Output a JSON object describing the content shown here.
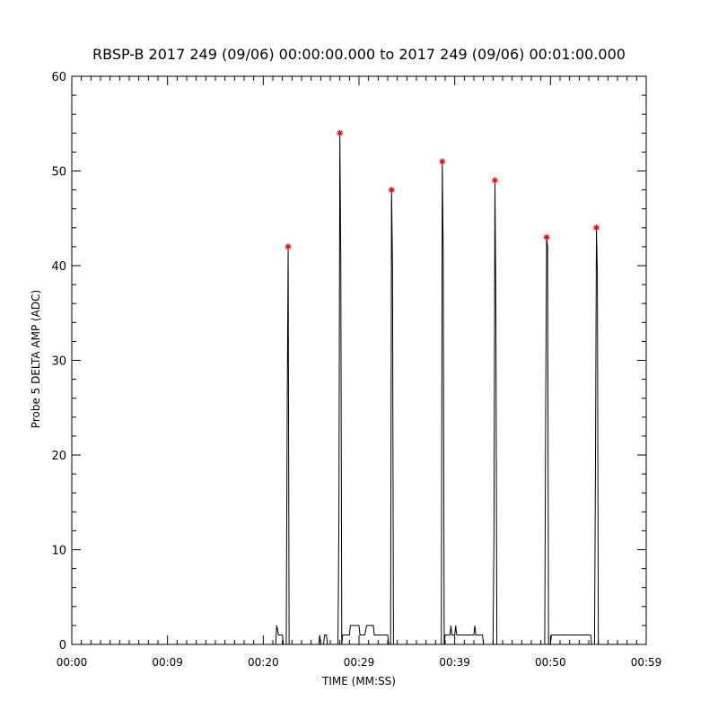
{
  "chart_data": {
    "type": "line",
    "title": "RBSP-B 2017 249 (09/06) 00:00:00.000 to 2017 249 (09/06) 00:01:00.000",
    "xlabel": "TIME (MM:SS)",
    "ylabel": "Probe 5 DELTA AMP (ADC)",
    "xlim": [
      0,
      60
    ],
    "ylim": [
      0,
      60
    ],
    "xticks": [
      {
        "value": 0,
        "label": "00:00"
      },
      {
        "value": 10,
        "label": "00:09"
      },
      {
        "value": 20,
        "label": "00:20"
      },
      {
        "value": 30,
        "label": "00:29"
      },
      {
        "value": 40,
        "label": "00:39"
      },
      {
        "value": 50,
        "label": "00:50"
      },
      {
        "value": 60,
        "label": "00:59"
      }
    ],
    "yticks": [
      0,
      10,
      20,
      30,
      40,
      50,
      60
    ],
    "series": [
      {
        "color": "#000000",
        "style": "line",
        "x": [
          0,
          21.3,
          21.4,
          21.6,
          22.0,
          22.1,
          22.4,
          22.5,
          22.6,
          22.7,
          22.9,
          25.8,
          25.9,
          26.0,
          26.3,
          26.4,
          26.6,
          26.7,
          27.8,
          27.9,
          28.0,
          28.1,
          28.2,
          28.3,
          29.0,
          29.1,
          30.0,
          30.1,
          30.6,
          30.8,
          31.5,
          31.6,
          33.0,
          33.1,
          33.3,
          33.4,
          33.5,
          33.6,
          38.3,
          38.6,
          38.7,
          38.8,
          38.9,
          39.0,
          39.5,
          39.6,
          39.7,
          40.0,
          40.1,
          40.2,
          42.0,
          42.1,
          42.2,
          42.9,
          43.0,
          44.0,
          44.1,
          44.2,
          44.3,
          44.4,
          49.4,
          49.5,
          49.6,
          49.7,
          49.8,
          50.0,
          50.1,
          54.2,
          54.3,
          54.6,
          54.7,
          54.8,
          54.9,
          55.0,
          60
        ],
        "values": [
          0,
          0,
          2,
          1,
          1,
          0,
          0,
          25,
          42,
          0,
          0,
          0,
          1,
          0,
          0,
          1,
          1,
          0,
          0,
          13,
          54,
          40,
          0,
          1,
          1,
          2,
          2,
          1,
          1,
          2,
          2,
          1,
          1,
          0,
          0,
          48,
          40,
          0,
          0,
          0,
          51,
          41,
          0,
          1,
          1,
          2,
          1,
          1,
          2,
          1,
          1,
          2,
          1,
          1,
          0,
          0,
          12,
          49,
          35,
          0,
          0,
          25,
          43,
          42,
          0,
          0,
          1,
          1,
          0,
          0,
          19,
          44,
          39,
          0,
          0
        ]
      },
      {
        "color": "#ff0000",
        "style": "star",
        "x": [
          22.6,
          28.0,
          33.4,
          38.7,
          44.2,
          49.6,
          54.8
        ],
        "values": [
          42,
          54,
          48,
          51,
          49,
          43,
          44
        ]
      }
    ]
  }
}
